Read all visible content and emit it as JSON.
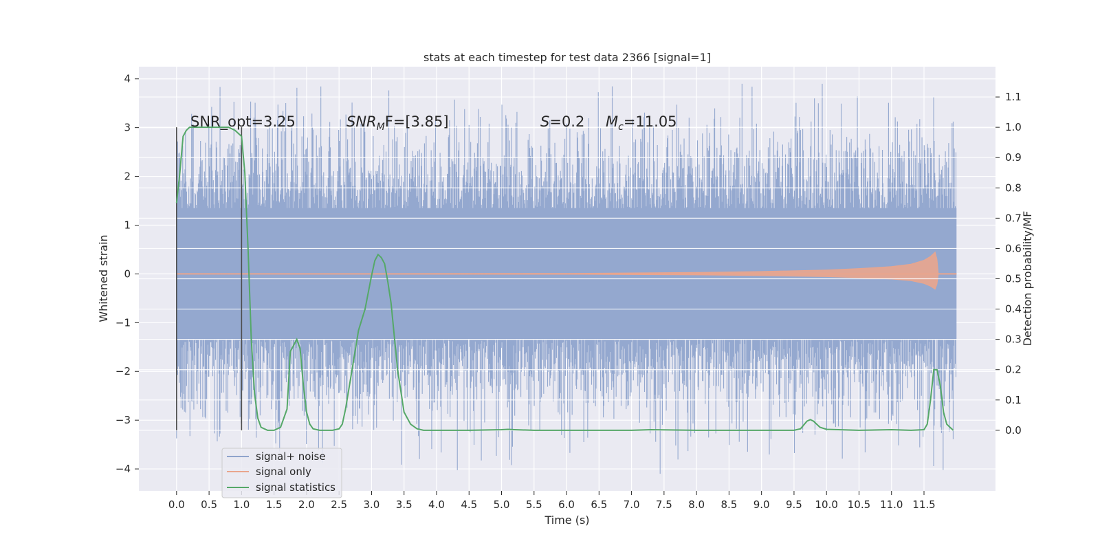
{
  "chart_data": {
    "type": "line",
    "title": "stats at each timestep for test data 2366 [signal=1]",
    "xlabel": "Time (s)",
    "ylabel": "Whitened strain",
    "ylabel_right": "Detection probability/MF",
    "xlim": [
      -0.58,
      12.6
    ],
    "ylim": [
      -4.45,
      4.25
    ],
    "ylim_right": [
      -0.2,
      1.2
    ],
    "xticks": [
      "0.0",
      "0.5",
      "1.0",
      "1.5",
      "2.0",
      "2.5",
      "3.0",
      "3.5",
      "4.0",
      "4.5",
      "5.0",
      "5.5",
      "6.0",
      "6.5",
      "7.0",
      "7.5",
      "8.0",
      "8.5",
      "9.0",
      "9.5",
      "10.0",
      "10.5",
      "11.0",
      "11.5"
    ],
    "yticks": [
      "−4",
      "−3",
      "−2",
      "−1",
      "0",
      "1",
      "2",
      "3",
      "4"
    ],
    "yticks_right": [
      "0.0",
      "0.1",
      "0.2",
      "0.3",
      "0.4",
      "0.5",
      "0.6",
      "0.7",
      "0.8",
      "0.9",
      "1.0",
      "1.1"
    ],
    "grid": true,
    "legend_position": "lower-left",
    "annotations": {
      "snr_opt": "SNR_opt=3.25",
      "snr_mf_main": "SNR",
      "snr_mf_sub": "M",
      "snr_mf_rest": "F=[3.85]",
      "s_italic": "S",
      "s_rest": "=0.2",
      "mc_main": "M",
      "mc_sub": "c",
      "mc_rest": "=11.05"
    },
    "vlines": [
      0.0,
      1.0
    ],
    "series": [
      {
        "name": "signal+ noise",
        "color": "#8fa4cc",
        "axis": "left",
        "description": "whitened strain noise, approx amplitude ±2 with peaks to ±3.9, sampled 0–12 s"
      },
      {
        "name": "signal only",
        "color": "#e9a58d",
        "axis": "left",
        "envelope": {
          "t": [
            0.0,
            6.0,
            8.0,
            9.0,
            10.0,
            10.5,
            11.0,
            11.3,
            11.5,
            11.6,
            11.65,
            11.67,
            11.7,
            11.72,
            12.0
          ],
          "amp": [
            0.0,
            0.01,
            0.03,
            0.05,
            0.08,
            0.11,
            0.15,
            0.2,
            0.28,
            0.36,
            0.42,
            0.45,
            0.3,
            0.0,
            0.0
          ]
        }
      },
      {
        "name": "signal statistics",
        "color": "#55a868",
        "axis": "right",
        "x": [
          0.0,
          0.05,
          0.1,
          0.15,
          0.2,
          0.3,
          0.4,
          0.5,
          0.6,
          0.7,
          0.8,
          0.9,
          0.95,
          1.0,
          1.05,
          1.1,
          1.15,
          1.2,
          1.25,
          1.3,
          1.4,
          1.5,
          1.6,
          1.7,
          1.75,
          1.8,
          1.85,
          1.9,
          1.95,
          2.0,
          2.05,
          2.1,
          2.2,
          2.3,
          2.4,
          2.5,
          2.55,
          2.6,
          2.7,
          2.8,
          2.9,
          3.0,
          3.05,
          3.1,
          3.15,
          3.2,
          3.25,
          3.3,
          3.4,
          3.5,
          3.6,
          3.7,
          3.8,
          4.0,
          4.5,
          5.0,
          5.1,
          5.2,
          5.5,
          6.0,
          7.0,
          7.3,
          8.0,
          9.0,
          9.5,
          9.6,
          9.7,
          9.75,
          9.8,
          9.9,
          10.0,
          10.5,
          11.0,
          11.3,
          11.5,
          11.55,
          11.6,
          11.65,
          11.7,
          11.75,
          11.8,
          11.85,
          11.9,
          11.95
        ],
        "y": [
          0.75,
          0.85,
          0.97,
          0.99,
          1.0,
          1.0,
          1.0,
          1.0,
          1.0,
          1.0,
          1.0,
          0.99,
          0.98,
          0.97,
          0.85,
          0.6,
          0.3,
          0.12,
          0.04,
          0.01,
          0.0,
          0.0,
          0.01,
          0.07,
          0.26,
          0.28,
          0.3,
          0.27,
          0.15,
          0.06,
          0.02,
          0.005,
          0.0,
          0.0,
          0.0,
          0.005,
          0.02,
          0.07,
          0.2,
          0.33,
          0.4,
          0.51,
          0.56,
          0.58,
          0.57,
          0.55,
          0.49,
          0.42,
          0.2,
          0.06,
          0.02,
          0.005,
          0.0,
          0.0,
          0.0,
          0.002,
          0.003,
          0.002,
          0.0,
          0.0,
          0.0,
          0.002,
          0.0,
          0.0,
          0.0,
          0.005,
          0.03,
          0.035,
          0.03,
          0.01,
          0.003,
          0.0,
          0.002,
          0.0,
          0.002,
          0.02,
          0.1,
          0.2,
          0.2,
          0.15,
          0.06,
          0.02,
          0.01,
          0.0
        ]
      }
    ]
  }
}
